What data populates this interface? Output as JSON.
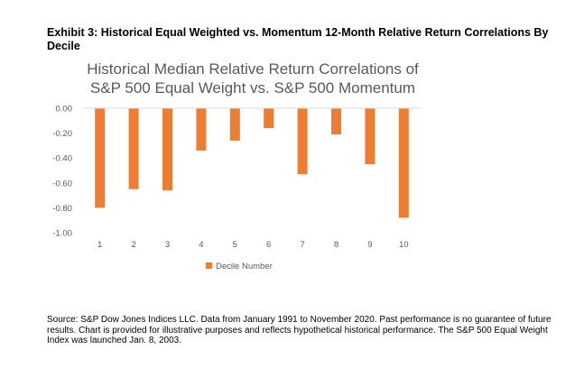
{
  "exhibit": {
    "title": "Exhibit 3: Historical Equal Weighted vs. Momentum 12-Month Relative Return Correlations By Decile"
  },
  "chart_data": {
    "type": "bar",
    "title_lines": [
      "Historical Median Relative Return Correlations of",
      "S&P 500 Equal Weight vs. S&P 500 Momentum"
    ],
    "categories": [
      "1",
      "2",
      "3",
      "4",
      "5",
      "6",
      "7",
      "8",
      "9",
      "10"
    ],
    "series": [
      {
        "name": "Decile Number",
        "values": [
          -0.8,
          -0.65,
          -0.66,
          -0.34,
          -0.26,
          -0.16,
          -0.53,
          -0.21,
          -0.45,
          -0.88
        ]
      }
    ],
    "ylim": [
      -1.0,
      0.0
    ],
    "yticks": [
      "0.00",
      "-0.20",
      "-0.40",
      "-0.60",
      "-0.80",
      "-1.00"
    ],
    "ytick_values": [
      0,
      -0.2,
      -0.4,
      -0.6,
      -0.8,
      -1.0
    ],
    "grid": false,
    "legend": "bottom",
    "bar_color": "#ed7d31",
    "axis_color": "#d9d9d9",
    "label_color": "#595959"
  },
  "source": {
    "text": "Source: S&P Dow Jones Indices LLC. Data from January 1991 to November 2020. Past performance is no guarantee of future results. Chart is provided for illustrative purposes and reflects hypothetical historical performance. The S&P 500 Equal Weight Index was launched Jan. 8, 2003."
  }
}
